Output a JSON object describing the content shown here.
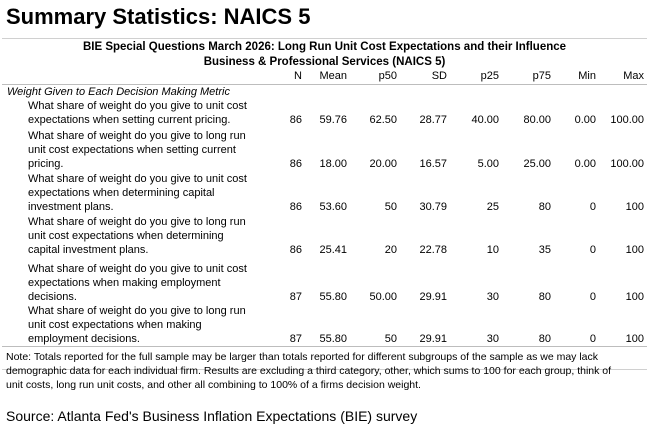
{
  "title": "Summary Statistics: NAICS 5",
  "subtitle_line1": "BIE Special Questions March 2026: Long Run Unit Cost Expectations and their Influence",
  "subtitle_line2": "Business & Professional Services (NAICS 5)",
  "columns": [
    "N",
    "Mean",
    "p50",
    "SD",
    "p25",
    "p75",
    "Min",
    "Max"
  ],
  "section_label": "Weight Given to Each Decision Making Metric",
  "rows": [
    {
      "lines": [
        "What share of weight do you give to unit cost",
        "expectations when setting current pricing."
      ],
      "values": [
        "86",
        "59.76",
        "62.50",
        "28.77",
        "40.00",
        "80.00",
        "0.00",
        "100.00"
      ]
    },
    {
      "lines": [
        "What share of weight do you give to long run",
        "unit cost expectations when setting current",
        "pricing."
      ],
      "values": [
        "86",
        "18.00",
        "20.00",
        "16.57",
        "5.00",
        "25.00",
        "0.00",
        "100.00"
      ]
    },
    {
      "lines": [
        "What share of weight do you give to unit cost",
        "expectations when determining capital",
        "investment plans."
      ],
      "values": [
        "86",
        "53.60",
        "50",
        "30.79",
        "25",
        "80",
        "0",
        "100"
      ]
    },
    {
      "lines": [
        "What share of weight do you give to long run",
        "unit cost expectations when determining",
        "capital investment plans."
      ],
      "values": [
        "86",
        "25.41",
        "20",
        "22.78",
        "10",
        "35",
        "0",
        "100"
      ]
    },
    {
      "lines": [
        "What share of weight do you give to unit cost",
        "expectations when making employment",
        "decisions."
      ],
      "values": [
        "87",
        "55.80",
        "50.00",
        "29.91",
        "30",
        "80",
        "0",
        "100"
      ]
    },
    {
      "lines": [
        "What share of weight do you give to long run",
        "unit cost expectations when making",
        "employment decisions."
      ],
      "values": [
        "87",
        "55.80",
        "50",
        "29.91",
        "30",
        "80",
        "0",
        "100"
      ]
    }
  ],
  "note_lines": [
    "Note: Totals reported for the full sample may be larger than totals reported for different subgroups of the sample as we may lack",
    "demographic data for each individual firm. Results are excluding a third category, other, which sums to 100 for each group, think of",
    "unit costs, long run unit costs, and other all combining to 100% of a firms decision weight."
  ],
  "source": "Source: Atlanta Fed's Business Inflation Expectations (BIE) survey"
}
